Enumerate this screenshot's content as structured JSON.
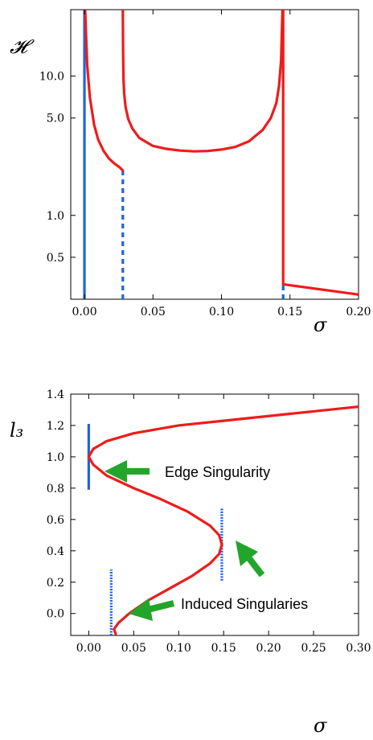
{
  "chart_data": [
    {
      "type": "line",
      "scale_y": "log",
      "xlabel": "σ",
      "ylabel": "𝓗",
      "xlim": [
        -0.01,
        0.2
      ],
      "ylim": [
        0.25,
        30
      ],
      "x_ticks": [
        "0.00",
        "0.05",
        "0.10",
        "0.15",
        "0.20"
      ],
      "x_tick_values": [
        0,
        0.05,
        0.1,
        0.15,
        0.2
      ],
      "y_ticks": [
        "0.5",
        "1.0",
        "5.0",
        "10.0"
      ],
      "y_tick_values": [
        0.5,
        1,
        5,
        10
      ],
      "grid": false,
      "series": [
        {
          "color": "#ee1c1c",
          "style": "solid",
          "x": [
            0.0005,
            0.001,
            0.002,
            0.004,
            0.007,
            0.01,
            0.014,
            0.018,
            0.022,
            0.026,
            0.028
          ],
          "y": [
            30,
            22,
            12,
            7.0,
            4.5,
            3.5,
            2.9,
            2.55,
            2.35,
            2.2,
            2.1
          ]
        },
        {
          "color": "#ee1c1c",
          "style": "solid",
          "x": [
            0.028,
            0.0282,
            0.0285,
            0.029,
            0.03,
            0.032,
            0.035,
            0.04,
            0.05,
            0.06,
            0.07,
            0.08,
            0.09,
            0.1,
            0.11,
            0.12,
            0.13,
            0.136,
            0.14,
            0.142,
            0.1435,
            0.1445
          ],
          "y": [
            30,
            15,
            9.5,
            7.5,
            6.0,
            4.9,
            4.2,
            3.6,
            3.15,
            3.0,
            2.92,
            2.88,
            2.9,
            2.97,
            3.1,
            3.4,
            4.1,
            5.0,
            6.4,
            8.5,
            13,
            30
          ]
        },
        {
          "color": "#ee1c1c",
          "style": "solid",
          "x": [
            0.145,
            0.145,
            0.2
          ],
          "y": [
            30,
            0.32,
            0.27
          ]
        }
      ],
      "vlines": [
        {
          "x": 0.0,
          "y": [
            0.25,
            30
          ],
          "color": "#1e64dc",
          "style": "solid"
        },
        {
          "x": 0.028,
          "y": [
            0.25,
            2.1
          ],
          "color": "#1e64dc",
          "style": "dashed"
        },
        {
          "x": 0.145,
          "y": [
            0.25,
            0.32
          ],
          "color": "#1e64dc",
          "style": "dashed"
        }
      ]
    },
    {
      "type": "line",
      "xlabel": "σ",
      "ylabel": "l₃",
      "xlim": [
        -0.02,
        0.3
      ],
      "ylim": [
        -0.14,
        1.4
      ],
      "x_ticks": [
        "0.00",
        "0.05",
        "0.10",
        "0.15",
        "0.20",
        "0.25",
        "0.30"
      ],
      "x_tick_values": [
        0,
        0.05,
        0.1,
        0.15,
        0.2,
        0.25,
        0.3
      ],
      "y_ticks": [
        "0.0",
        "0.2",
        "0.4",
        "0.6",
        "0.8",
        "1.0",
        "1.2",
        "1.4"
      ],
      "y_tick_values": [
        0,
        0.2,
        0.4,
        0.6,
        0.8,
        1.0,
        1.2,
        1.4
      ],
      "grid": false,
      "series": [
        {
          "color": "#ee1c1c",
          "style": "solid",
          "x": [
            0.3,
            0.25,
            0.2,
            0.15,
            0.1,
            0.05,
            0.02,
            0.005,
            0.0,
            0.005,
            0.02,
            0.05,
            0.08,
            0.11,
            0.135,
            0.145,
            0.148,
            0.145,
            0.135,
            0.115,
            0.09,
            0.065,
            0.045,
            0.033,
            0.028,
            0.03
          ],
          "y": [
            1.32,
            1.29,
            1.26,
            1.23,
            1.2,
            1.15,
            1.1,
            1.05,
            1.0,
            0.95,
            0.88,
            0.8,
            0.73,
            0.65,
            0.56,
            0.5,
            0.44,
            0.38,
            0.32,
            0.24,
            0.16,
            0.08,
            0.0,
            -0.06,
            -0.1,
            -0.13
          ]
        }
      ],
      "vlines": [
        {
          "x": 0.0,
          "y": [
            0.79,
            1.21
          ],
          "color": "#1e64dc",
          "style": "solid"
        },
        {
          "x": 0.148,
          "y": [
            0.21,
            0.67
          ],
          "color": "#1e64dc",
          "style": "dotted"
        },
        {
          "x": 0.025,
          "y": [
            -0.14,
            0.28
          ],
          "color": "#1e64dc",
          "style": "dotted"
        }
      ],
      "annotations": [
        {
          "text": "Edge Singularity"
        },
        {
          "text": "Induced Singularies"
        }
      ]
    }
  ]
}
